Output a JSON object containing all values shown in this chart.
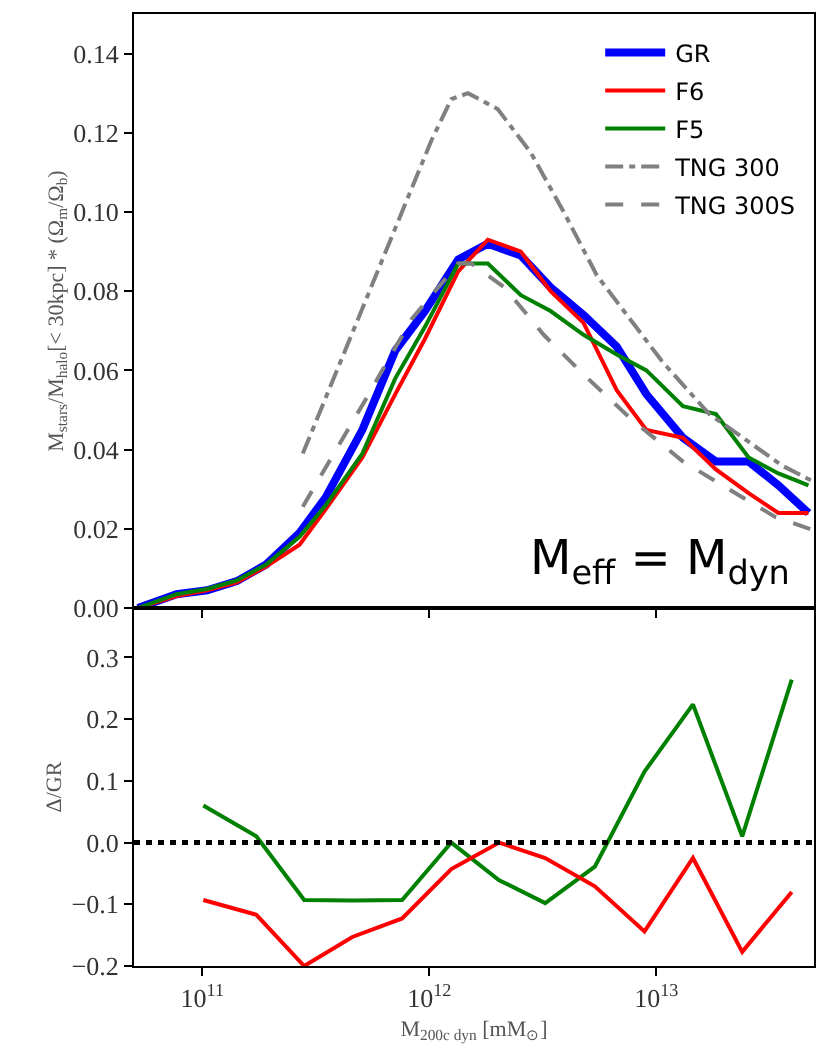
{
  "chart_data": [
    {
      "type": "line",
      "ylabel": "M$_{stars}$/M$_{halo}$[< 30kpc] * (Ω$_{m}$/Ω$_{b}$)",
      "log": "x",
      "grid": false,
      "legend": "top right",
      "tick_labels": "y",
      "xlim": [
        50000000000.0,
        49500000000000.0
      ],
      "xticks": [
        {
          "value": 100000000000.0,
          "label": null
        },
        {
          "value": 1000000000000.0,
          "label": null
        },
        {
          "value": 10000000000000.0,
          "label": null
        }
      ],
      "ylim": [
        0,
        0.15
      ],
      "yticks": [
        {
          "value": 0,
          "label": "0.00"
        },
        0.02,
        0.04,
        0.06,
        0.08,
        {
          "value": 0.1,
          "label": "0.10"
        },
        0.12,
        0.14
      ],
      "x": [
        52000000000.0,
        77000000000.0,
        105000000000.0,
        142000000000.0,
        191000000000.0,
        268000000000.0,
        350000000000.0,
        507000000000.0,
        708000000000.0,
        957000000000.0,
        1340000000000.0,
        1810000000000.0,
        2530000000000.0,
        3420000000000.0,
        4780000000000.0,
        6690000000000.0,
        9040000000000.0,
        13100000000000.0,
        18300000000000.0,
        25500000000000.0,
        34500000000000.0,
        46800000000000.0
      ],
      "series": [
        {
          "name": "GR",
          "color": "#0000ff",
          "line_style": "solid",
          "values": [
            0,
            0.0035,
            0.0045,
            0.0068,
            0.011,
            0.019,
            0.028,
            0.045,
            0.065,
            0.075,
            0.088,
            0.092,
            0.089,
            0.081,
            0.074,
            0.066,
            0.054,
            0.043,
            0.037,
            0.037,
            0.031,
            0.024
          ]
        },
        {
          "name": "F6",
          "color": "#ff0000",
          "line_style": "solid",
          "values": [
            0,
            0.003,
            0.0045,
            0.0065,
            0.0105,
            0.016,
            0.025,
            0.038,
            0.054,
            0.068,
            0.085,
            0.093,
            0.09,
            0.08,
            0.072,
            0.055,
            0.045,
            0.043,
            0.035,
            0.029,
            0.024,
            0.024
          ]
        },
        {
          "name": "F5",
          "color": "#008000",
          "line_style": "solid",
          "values": [
            0,
            0.0035,
            0.0048,
            0.007,
            0.011,
            0.018,
            0.026,
            0.039,
            0.058,
            0.071,
            0.087,
            0.087,
            0.079,
            0.075,
            0.069,
            0.064,
            0.06,
            0.051,
            0.049,
            0.038,
            0.034,
            0.031
          ]
        },
        {
          "name": "TNG 300",
          "color": "#808080",
          "line_style": "dashdot",
          "x": [
            277000000000.0,
            733000000000.0,
            1020000000000.0,
            1250000000000.0,
            1480000000000.0,
            2000000000000.0,
            2800000000000.0,
            3910000000000.0,
            5470000000000.0,
            7650000000000.0,
            10700000000000.0,
            17100000000000.0,
            25500000000000.0,
            35700000000000.0,
            49000000000000.0
          ],
          "values": [
            0.039,
            0.098,
            0.118,
            0.1285,
            0.13,
            0.126,
            0.115,
            0.1,
            0.084,
            0.073,
            0.062,
            0.049,
            0.042,
            0.036,
            0.032
          ]
        },
        {
          "name": "TNG 300S",
          "color": "#808080",
          "line_style": "dashed",
          "x": [
            277000000000.0,
            522000000000.0,
            837000000000.0,
            1340000000000.0,
            1530000000000.0,
            2140000000000.0,
            3190000000000.0,
            4780000000000.0,
            7650000000000.0,
            13100000000000.0,
            20900000000000.0,
            33400000000000.0,
            49000000000000.0
          ],
          "values": [
            0.0256,
            0.0525,
            0.073,
            0.087,
            0.087,
            0.081,
            0.069,
            0.059,
            0.048,
            0.037,
            0.03,
            0.023,
            0.0197
          ]
        }
      ],
      "annotations": [
        "M$_{eff}$ = M$_{dyn}$"
      ]
    },
    {
      "type": "line",
      "xlabel": "M$_{200c dyn}$ [mM$_{⊙}$]",
      "ylabel": "Δ/GR",
      "log": "x",
      "grid": false,
      "legend": false,
      "xlim": [
        50000000000.0,
        49500000000000.0
      ],
      "xticks": [
        {
          "value": 100000000000.0,
          "label": "10$^{11}$"
        },
        {
          "value": 1000000000000.0,
          "label": "10$^{12}$"
        },
        {
          "value": 10000000000000.0,
          "label": "10$^{13}$"
        }
      ],
      "ylim": [
        -0.2,
        0.38
      ],
      "yticks": [
        {
          "value": -0.2,
          "label": "−0.2"
        },
        {
          "value": -0.1,
          "label": "−0.1"
        },
        {
          "value": 0,
          "label": "0.0"
        },
        0.1,
        0.2,
        0.3
      ],
      "x": [
        101000000000.0,
        173000000000.0,
        281000000000.0,
        458000000000.0,
        759000000000.0,
        1250000000000.0,
        2030000000000.0,
        3240000000000.0,
        5360000000000.0,
        8870000000000.0,
        14500000000000.0,
        23900000000000.0,
        39500000000000.0
      ],
      "series": [
        {
          "color": "#008000",
          "line_style": "solid",
          "values": [
            0.06,
            0.01,
            -0.093,
            -0.094,
            -0.093,
            0.0,
            -0.061,
            -0.098,
            -0.039,
            0.115,
            0.224,
            0.01,
            0.264
          ]
        },
        {
          "color": "#ff0000",
          "line_style": "solid",
          "values": [
            -0.093,
            -0.117,
            -0.2,
            -0.153,
            -0.123,
            -0.043,
            0.0,
            -0.025,
            -0.071,
            -0.144,
            -0.025,
            -0.177,
            -0.08
          ]
        }
      ],
      "ref_lines": [
        {
          "axis": "y",
          "value": 0,
          "color": "#000000",
          "line_style": "dotted"
        }
      ]
    }
  ]
}
